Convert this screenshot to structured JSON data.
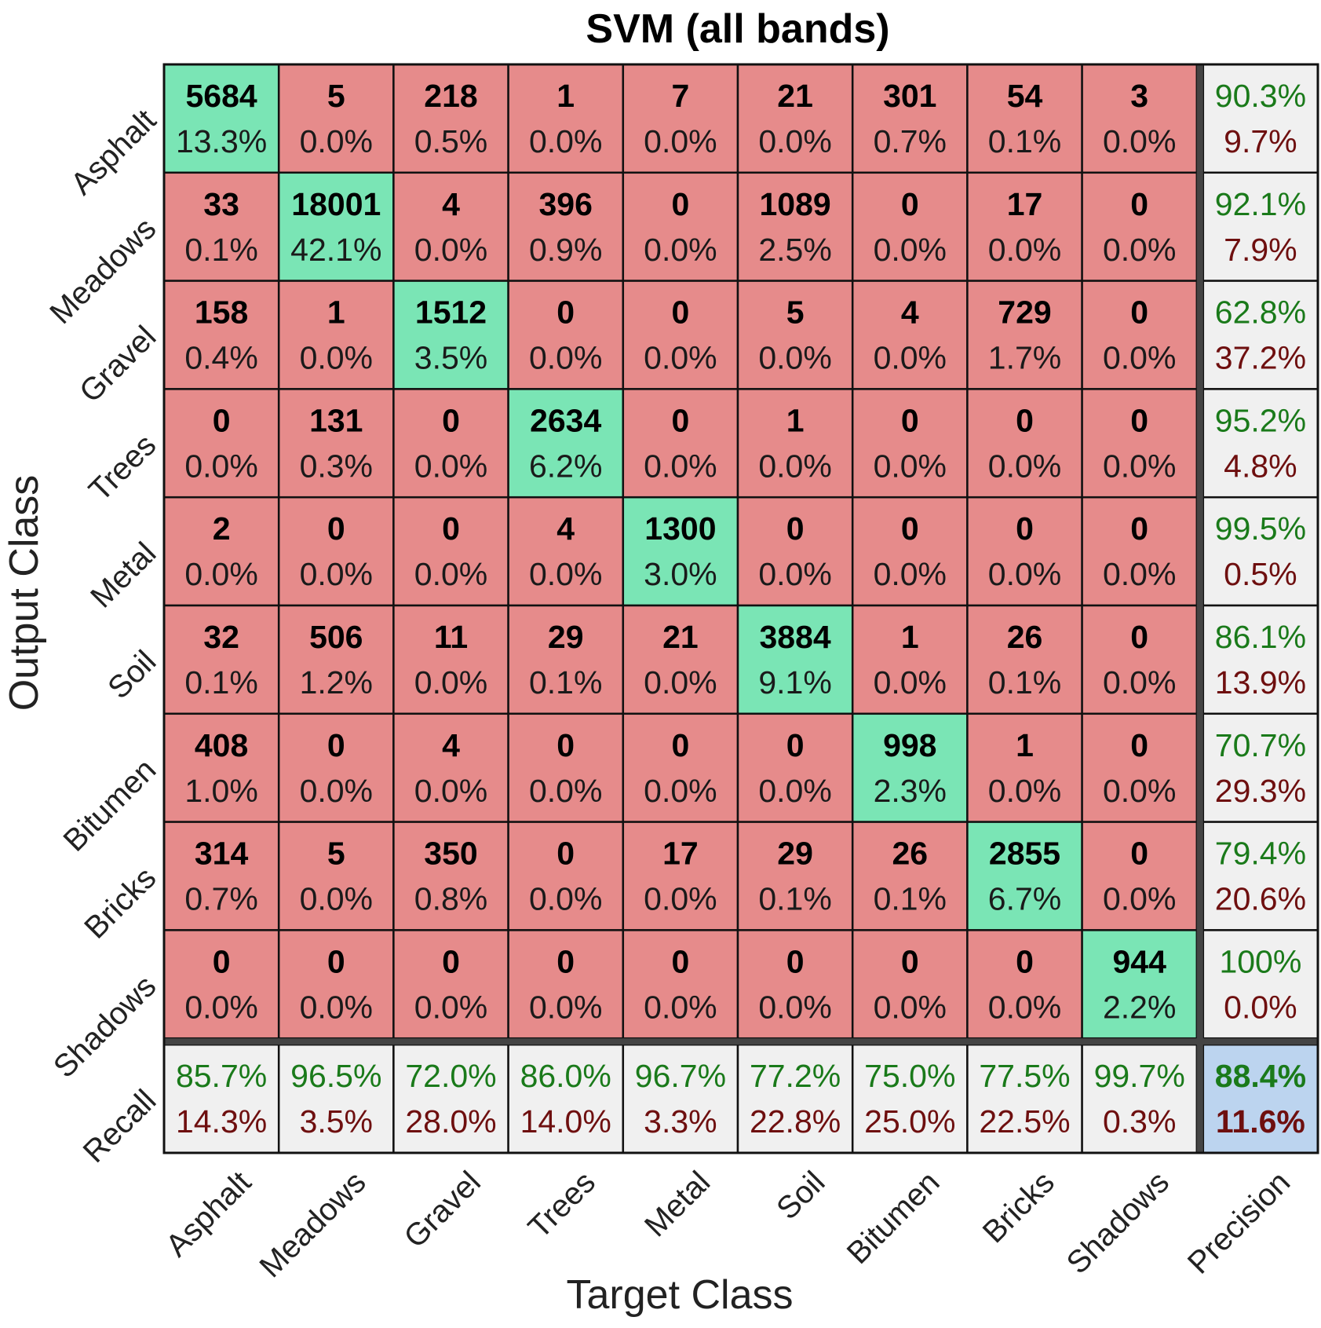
{
  "chart_data": {
    "type": "heatmap",
    "title": "SVM (all bands)",
    "xlabel": "Target Class",
    "ylabel": "Output Class",
    "classes": [
      "Asphalt",
      "Meadows",
      "Gravel",
      "Trees",
      "Metal",
      "Soil",
      "Bitumen",
      "Bricks",
      "Shadows"
    ],
    "x_extra_label": "Precision",
    "y_extra_label": "Recall",
    "counts": [
      [
        5684,
        5,
        218,
        1,
        7,
        21,
        301,
        54,
        3
      ],
      [
        33,
        18001,
        4,
        396,
        0,
        1089,
        0,
        17,
        0
      ],
      [
        158,
        1,
        1512,
        0,
        0,
        5,
        4,
        729,
        0
      ],
      [
        0,
        131,
        0,
        2634,
        0,
        1,
        0,
        0,
        0
      ],
      [
        2,
        0,
        0,
        4,
        1300,
        0,
        0,
        0,
        0
      ],
      [
        32,
        506,
        11,
        29,
        21,
        3884,
        1,
        26,
        0
      ],
      [
        408,
        0,
        4,
        0,
        0,
        0,
        998,
        1,
        0
      ],
      [
        314,
        5,
        350,
        0,
        17,
        29,
        26,
        2855,
        0
      ],
      [
        0,
        0,
        0,
        0,
        0,
        0,
        0,
        0,
        944
      ]
    ],
    "percents": [
      [
        "13.3%",
        "0.0%",
        "0.5%",
        "0.0%",
        "0.0%",
        "0.0%",
        "0.7%",
        "0.1%",
        "0.0%"
      ],
      [
        "0.1%",
        "42.1%",
        "0.0%",
        "0.9%",
        "0.0%",
        "2.5%",
        "0.0%",
        "0.0%",
        "0.0%"
      ],
      [
        "0.4%",
        "0.0%",
        "3.5%",
        "0.0%",
        "0.0%",
        "0.0%",
        "0.0%",
        "1.7%",
        "0.0%"
      ],
      [
        "0.0%",
        "0.3%",
        "0.0%",
        "6.2%",
        "0.0%",
        "0.0%",
        "0.0%",
        "0.0%",
        "0.0%"
      ],
      [
        "0.0%",
        "0.0%",
        "0.0%",
        "0.0%",
        "3.0%",
        "0.0%",
        "0.0%",
        "0.0%",
        "0.0%"
      ],
      [
        "0.1%",
        "1.2%",
        "0.0%",
        "0.1%",
        "0.0%",
        "9.1%",
        "0.0%",
        "0.1%",
        "0.0%"
      ],
      [
        "1.0%",
        "0.0%",
        "0.0%",
        "0.0%",
        "0.0%",
        "0.0%",
        "2.3%",
        "0.0%",
        "0.0%"
      ],
      [
        "0.7%",
        "0.0%",
        "0.8%",
        "0.0%",
        "0.0%",
        "0.1%",
        "0.1%",
        "6.7%",
        "0.0%"
      ],
      [
        "0.0%",
        "0.0%",
        "0.0%",
        "0.0%",
        "0.0%",
        "0.0%",
        "0.0%",
        "0.0%",
        "2.2%"
      ]
    ],
    "precision": [
      [
        "90.3%",
        "9.7%"
      ],
      [
        "92.1%",
        "7.9%"
      ],
      [
        "62.8%",
        "37.2%"
      ],
      [
        "95.2%",
        "4.8%"
      ],
      [
        "99.5%",
        "0.5%"
      ],
      [
        "86.1%",
        "13.9%"
      ],
      [
        "70.7%",
        "29.3%"
      ],
      [
        "79.4%",
        "20.6%"
      ],
      [
        "100%",
        "0.0%"
      ]
    ],
    "recall": [
      [
        "85.7%",
        "14.3%"
      ],
      [
        "96.5%",
        "3.5%"
      ],
      [
        "72.0%",
        "28.0%"
      ],
      [
        "86.0%",
        "14.0%"
      ],
      [
        "96.7%",
        "3.3%"
      ],
      [
        "77.2%",
        "22.8%"
      ],
      [
        "75.0%",
        "25.0%"
      ],
      [
        "77.5%",
        "22.5%"
      ],
      [
        "99.7%",
        "0.3%"
      ]
    ],
    "overall": [
      "88.4%",
      "11.6%"
    ],
    "colors": {
      "diagonal": "#7ae5b5",
      "off_diagonal": "#e68b8b",
      "summary": "#f0f0f0",
      "overall": "#bcd4ef",
      "good_text": "#1a7a1a",
      "bad_text": "#6e0f0f",
      "text": "#000000",
      "grid": "#111111",
      "separator": "#444444"
    }
  }
}
